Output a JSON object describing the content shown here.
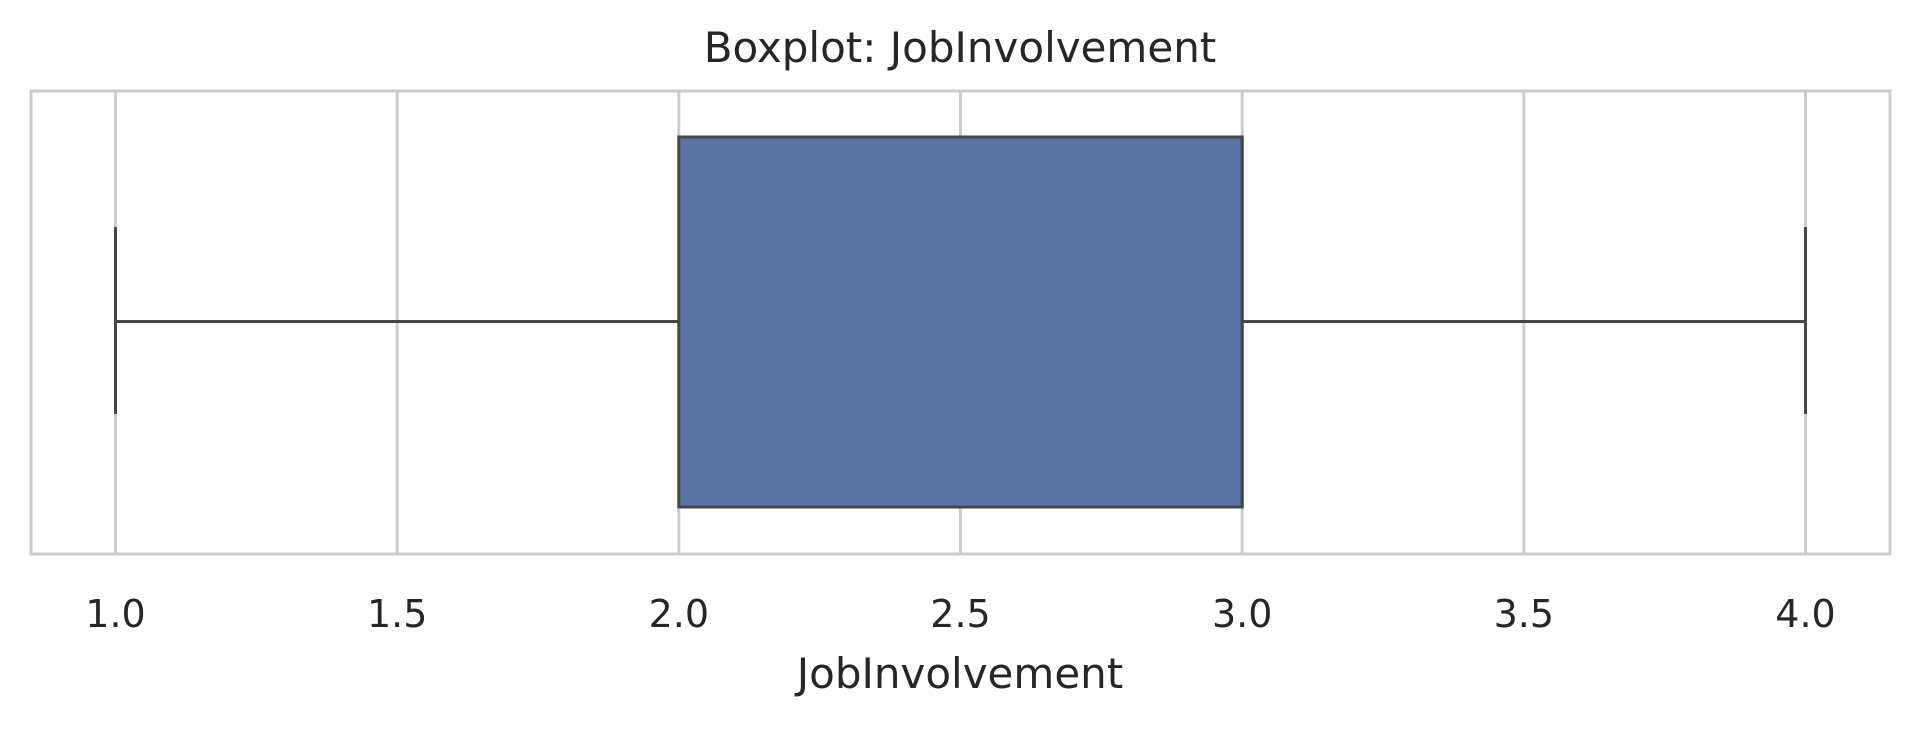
{
  "chart_data": {
    "type": "boxplot",
    "orientation": "horizontal",
    "title": "Boxplot: JobInvolvement",
    "xlabel": "JobInvolvement",
    "ylabel": "",
    "xlim": [
      0.85,
      4.15
    ],
    "xticks": [
      1.0,
      1.5,
      2.0,
      2.5,
      3.0,
      3.5,
      4.0
    ],
    "xtick_labels": [
      "1.0",
      "1.5",
      "2.0",
      "2.5",
      "3.0",
      "3.5",
      "4.0"
    ],
    "grid": true,
    "series": [
      {
        "whisker_low": 1.0,
        "q1": 2.0,
        "median": 3.0,
        "q3": 3.0,
        "whisker_high": 4.0
      }
    ],
    "colors": {
      "box_fill": "#5975a4",
      "line": "#474747",
      "grid": "#cccccc",
      "frame": "#cccccc",
      "text": "#262626"
    }
  }
}
